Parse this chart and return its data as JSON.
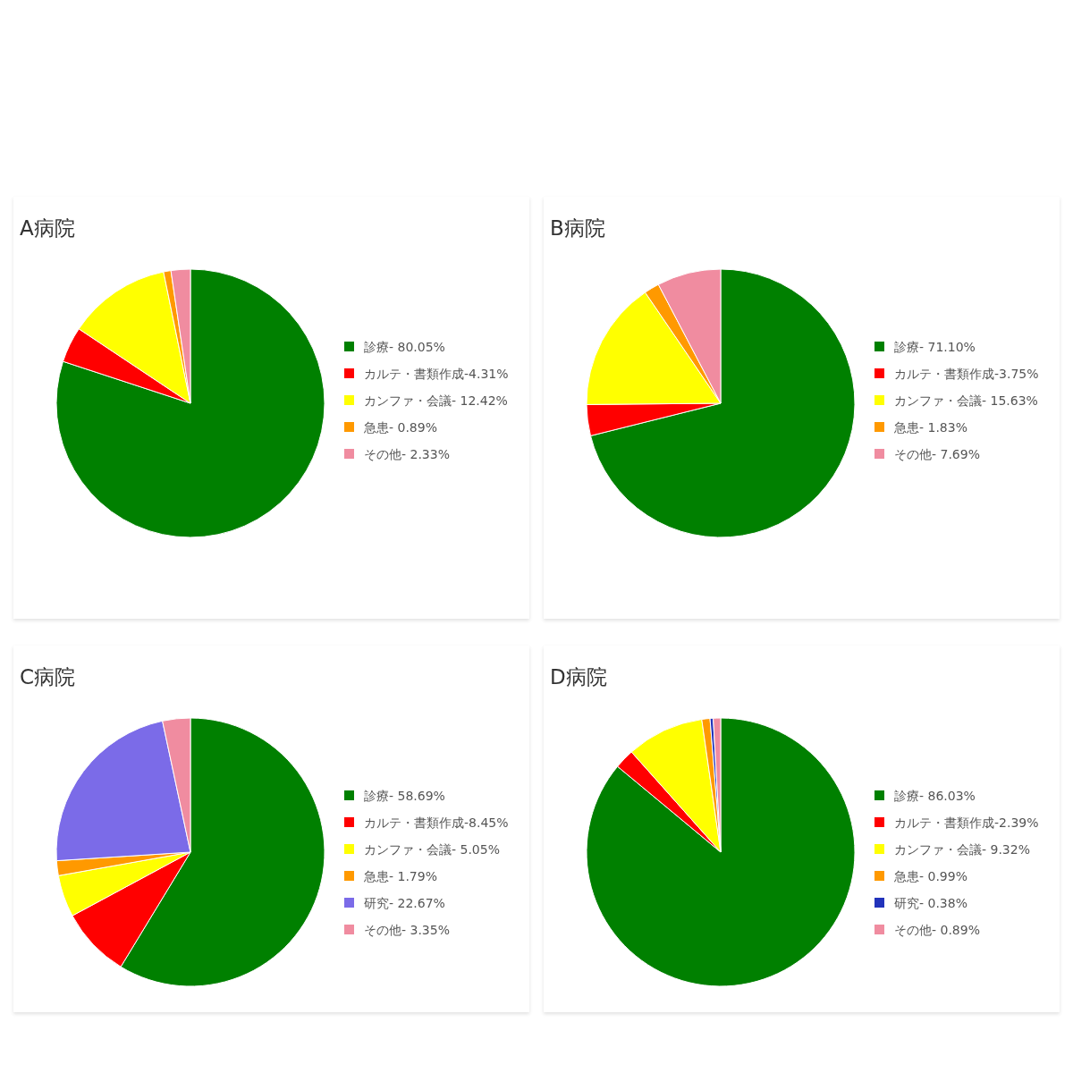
{
  "chart_data": [
    {
      "type": "pie",
      "title": "A病院",
      "categories": [
        "診療- 80.05%",
        "カルテ・書類作成-4.31%",
        "カンファ・会議- 12.42%",
        "急患- 0.89%",
        "その他- 2.33%"
      ],
      "values": [
        80.05,
        4.31,
        12.42,
        0.89,
        2.33
      ],
      "colors": [
        "#008000",
        "#ff0000",
        "#ffff00",
        "#ff9900",
        "#f08ca0"
      ],
      "legend": "right"
    },
    {
      "type": "pie",
      "title": "B病院",
      "categories": [
        "診療- 71.10%",
        "カルテ・書類作成-3.75%",
        "カンファ・会議- 15.63%",
        "急患- 1.83%",
        "その他- 7.69%"
      ],
      "values": [
        71.1,
        3.75,
        15.63,
        1.83,
        7.69
      ],
      "colors": [
        "#008000",
        "#ff0000",
        "#ffff00",
        "#ff9900",
        "#f08ca0"
      ],
      "legend": "right"
    },
    {
      "type": "pie",
      "title": "C病院",
      "categories": [
        "診療- 58.69%",
        "カルテ・書類作成-8.45%",
        "カンファ・会議- 5.05%",
        "急患- 1.79%",
        "研究- 22.67%",
        "その他- 3.35%"
      ],
      "values": [
        58.69,
        8.45,
        5.05,
        1.79,
        22.67,
        3.35
      ],
      "colors": [
        "#008000",
        "#ff0000",
        "#ffff00",
        "#ff9900",
        "#7b6be8",
        "#f08ca0"
      ],
      "legend": "right"
    },
    {
      "type": "pie",
      "title": "D病院",
      "categories": [
        "診療- 86.03%",
        "カルテ・書類作成-2.39%",
        "カンファ・会議- 9.32%",
        "急患- 0.99%",
        "研究- 0.38%",
        "その他- 0.89%"
      ],
      "values": [
        86.03,
        2.39,
        9.32,
        0.99,
        0.38,
        0.89
      ],
      "colors": [
        "#008000",
        "#ff0000",
        "#ffff00",
        "#ff9900",
        "#2233bb",
        "#f08ca0"
      ],
      "legend": "right"
    }
  ]
}
